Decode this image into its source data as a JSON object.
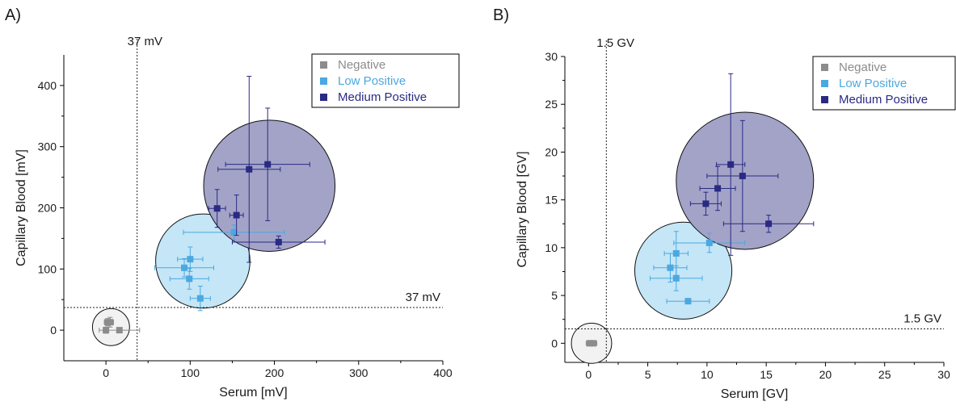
{
  "chart_data": [
    {
      "type": "scatter",
      "panel_label": "A)",
      "xlabel": "Serum [mV]",
      "ylabel": "Capillary Blood [mV]",
      "xlim": [
        -50,
        400
      ],
      "ylim": [
        -50,
        450
      ],
      "xticks": [
        0,
        100,
        200,
        300,
        400
      ],
      "yticks": [
        0,
        100,
        200,
        300,
        400
      ],
      "threshold": {
        "x": 37,
        "y": 37,
        "x_label": "37 mV",
        "y_label": "37 mV"
      },
      "legend_position": "top-right",
      "series": [
        {
          "name": "Negative",
          "color": "#8c8c8c",
          "points": [
            {
              "x": 0,
              "y": 0,
              "xerr": 3,
              "yerr": 5
            },
            {
              "x": 2,
              "y": 13,
              "xerr": 4,
              "yerr": 6
            },
            {
              "x": 5,
              "y": 13,
              "xerr": 4,
              "yerr": 8
            },
            {
              "x": 16,
              "y": 0,
              "xerr": 24,
              "yerr": 3
            }
          ],
          "circle": {
            "cx": 6,
            "cy": 5,
            "r": 22,
            "fill": "#f2f2f2"
          }
        },
        {
          "name": "Low Positive",
          "color": "#4ba8e0",
          "points": [
            {
              "x": 100,
              "y": 116,
              "xerr": 15,
              "yerr": 20
            },
            {
              "x": 93,
              "y": 102,
              "xerr": 35,
              "yerr": 15
            },
            {
              "x": 99,
              "y": 84,
              "xerr": 23,
              "yerr": 17
            },
            {
              "x": 112,
              "y": 52,
              "xerr": 12,
              "yerr": 20
            },
            {
              "x": 152,
              "y": 160,
              "xerr": 60,
              "yerr": 12
            }
          ],
          "circle": {
            "cx": 115,
            "cy": 113,
            "r": 56,
            "fill": "#c4e6f7"
          }
        },
        {
          "name": "Medium Positive",
          "color": "#2a2a84",
          "points": [
            {
              "x": 132,
              "y": 199,
              "xerr": 10,
              "yerr": 31
            },
            {
              "x": 155,
              "y": 188,
              "xerr": 8,
              "yerr": 33
            },
            {
              "x": 170,
              "y": 263,
              "xerr": 37,
              "yerr": 152
            },
            {
              "x": 192,
              "y": 271,
              "xerr": 50,
              "yerr": 92
            },
            {
              "x": 205,
              "y": 144,
              "xerr": 55,
              "yerr": 10
            }
          ],
          "circle": {
            "cx": 194,
            "cy": 236,
            "r": 78,
            "fill": "#a3a3c8"
          }
        }
      ]
    },
    {
      "type": "scatter",
      "panel_label": "B)",
      "xlabel": "Serum [GV]",
      "ylabel": "Capillary Blood [GV]",
      "xlim": [
        -2,
        30
      ],
      "ylim": [
        -2,
        30
      ],
      "xticks": [
        0,
        5,
        10,
        15,
        20,
        25,
        30
      ],
      "yticks": [
        0,
        5,
        10,
        15,
        20,
        25,
        30
      ],
      "threshold": {
        "x": 1.5,
        "y": 1.5,
        "x_label": "1.5 GV",
        "y_label": "1.5 GV"
      },
      "legend_position": "top-right",
      "series": [
        {
          "name": "Negative",
          "color": "#8c8c8c",
          "points": [
            {
              "x": 0.1,
              "y": 0,
              "xerr": 0.3,
              "yerr": 0.2
            },
            {
              "x": 0.4,
              "y": 0,
              "xerr": 0.3,
              "yerr": 0.2
            }
          ],
          "circle": {
            "cx": 0.25,
            "cy": 0,
            "r": 1.7,
            "fill": "#f2f2f2"
          }
        },
        {
          "name": "Low Positive",
          "color": "#4ba8e0",
          "points": [
            {
              "x": 10.2,
              "y": 10.5,
              "xerr": 3,
              "yerr": 1
            },
            {
              "x": 7.4,
              "y": 9.4,
              "xerr": 1,
              "yerr": 2.3
            },
            {
              "x": 6.9,
              "y": 7.9,
              "xerr": 1.4,
              "yerr": 1.5
            },
            {
              "x": 7.4,
              "y": 6.8,
              "xerr": 2.2,
              "yerr": 1.3
            },
            {
              "x": 8.4,
              "y": 4.4,
              "xerr": 1.8,
              "yerr": 0.2
            }
          ],
          "circle": {
            "cx": 8,
            "cy": 7.6,
            "r": 4.1,
            "fill": "#c4e6f7"
          }
        },
        {
          "name": "Medium Positive",
          "color": "#2a2a84",
          "points": [
            {
              "x": 12,
              "y": 18.7,
              "xerr": 1.2,
              "yerr": 9.5
            },
            {
              "x": 13,
              "y": 17.5,
              "xerr": 3,
              "yerr": 5.8
            },
            {
              "x": 10.9,
              "y": 16.2,
              "xerr": 1.5,
              "yerr": 2.3
            },
            {
              "x": 9.9,
              "y": 14.6,
              "xerr": 1.3,
              "yerr": 1.2
            },
            {
              "x": 15.2,
              "y": 12.5,
              "xerr": 3.8,
              "yerr": 0.9
            }
          ],
          "circle": {
            "cx": 13.2,
            "cy": 17,
            "r": 5.8,
            "fill": "#a3a3c8"
          }
        }
      ]
    }
  ]
}
